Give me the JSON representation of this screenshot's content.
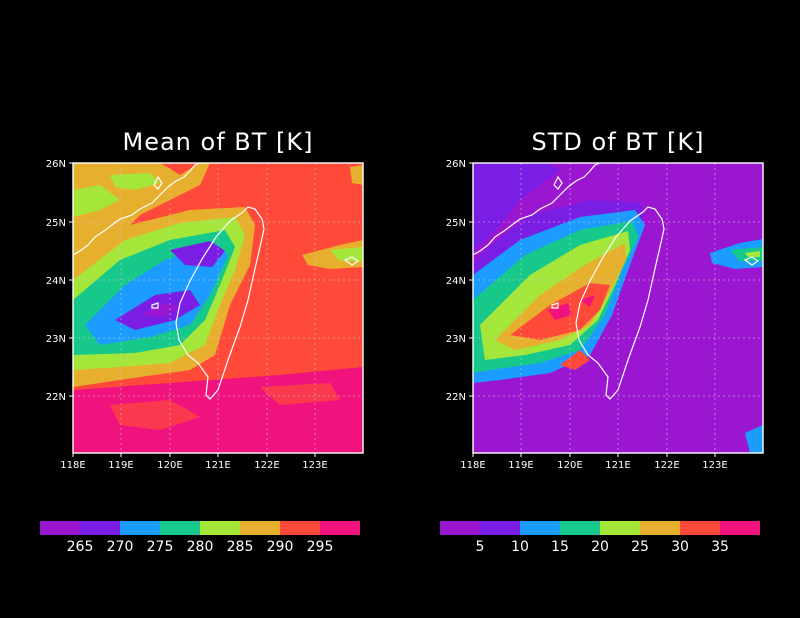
{
  "panels": [
    {
      "title": "Mean of BT [K]",
      "lon_labels": [
        "118E",
        "119E",
        "120E",
        "121E",
        "122E",
        "123E"
      ],
      "lat_labels": [
        "26N",
        "25N",
        "24N",
        "23N",
        "22N"
      ],
      "colorbar": {
        "colors": [
          "#9b16d0",
          "#7a1ee6",
          "#1c9cff",
          "#16c98a",
          "#a5e63a",
          "#e6b02e",
          "#ff4a3a",
          "#f0137e"
        ],
        "labels": [
          "265",
          "270",
          "275",
          "280",
          "285",
          "290",
          "295"
        ]
      }
    },
    {
      "title": "STD of BT [K]",
      "lon_labels": [
        "118E",
        "119E",
        "120E",
        "121E",
        "122E",
        "123E"
      ],
      "lat_labels": [
        "26N",
        "25N",
        "24N",
        "23N",
        "22N"
      ],
      "colorbar": {
        "colors": [
          "#9b16d0",
          "#7a1ee6",
          "#1c9cff",
          "#16c98a",
          "#a5e63a",
          "#e6b02e",
          "#ff4a3a",
          "#f0137e"
        ],
        "labels": [
          "5",
          "10",
          "15",
          "20",
          "25",
          "30",
          "35"
        ]
      }
    }
  ]
}
